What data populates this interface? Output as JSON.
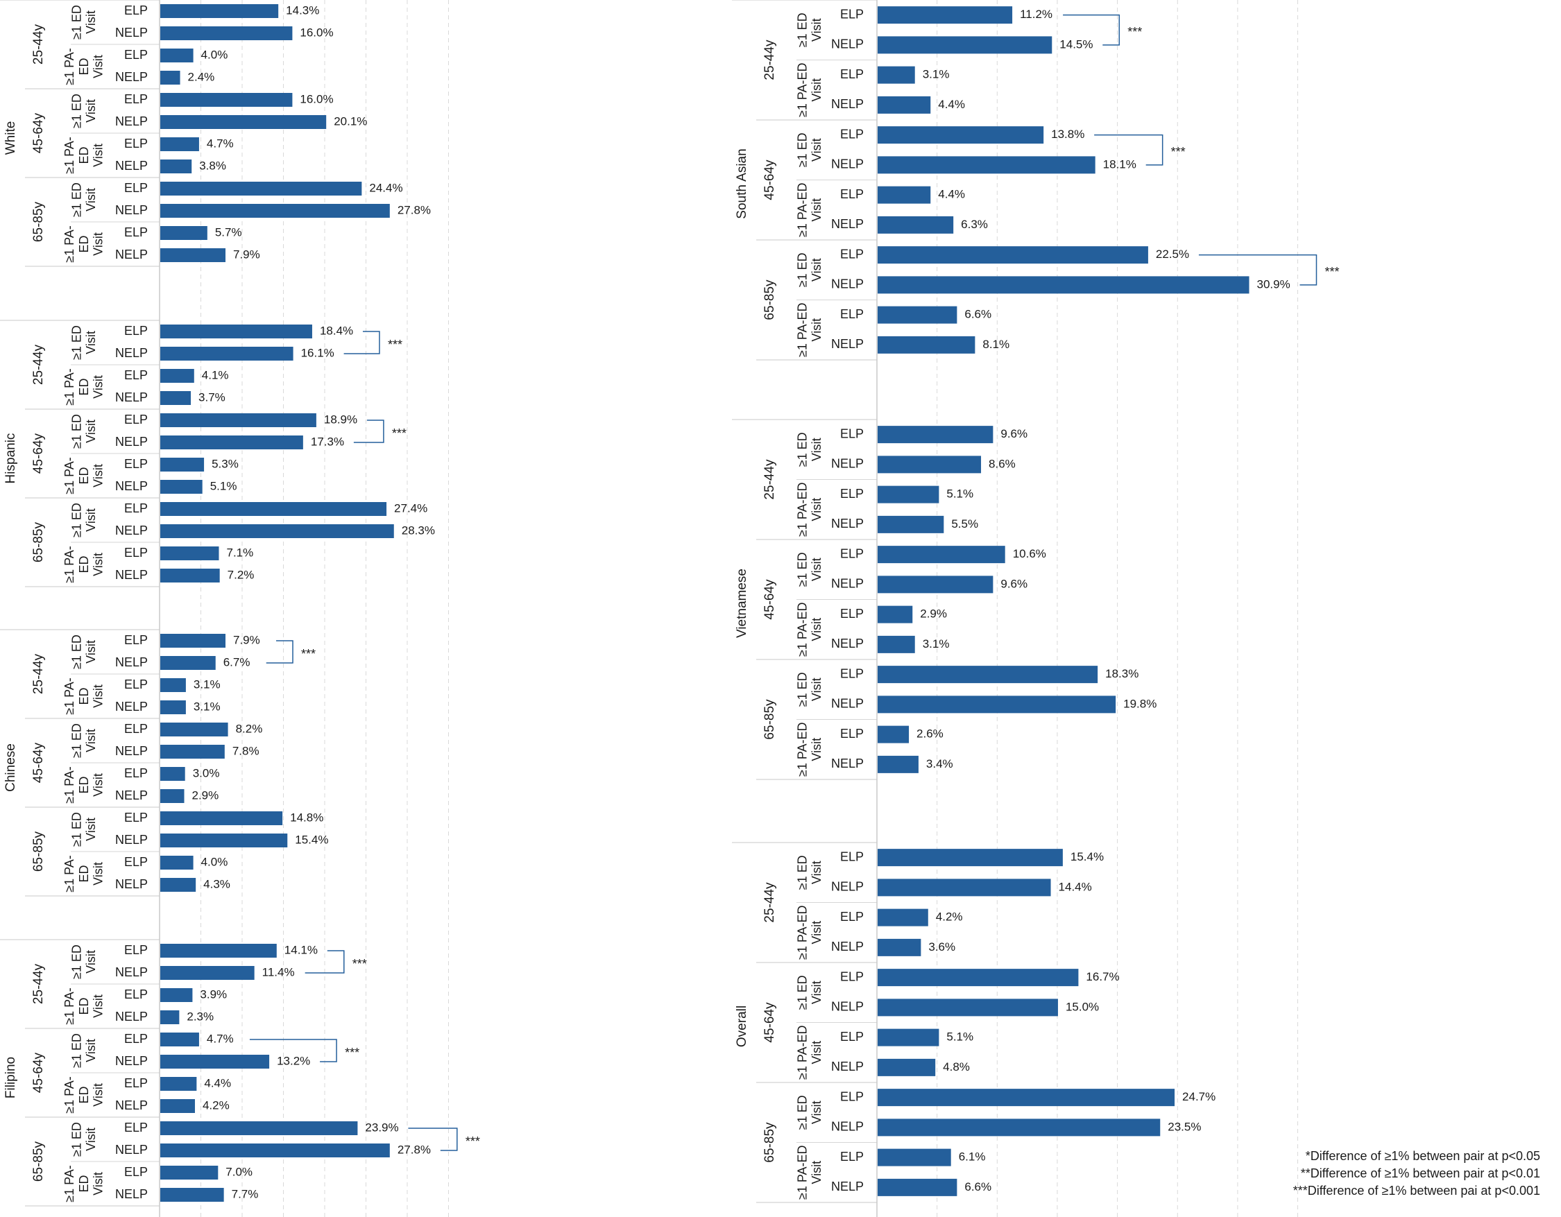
{
  "chart_data": {
    "type": "bar",
    "orientation": "horizontal",
    "xlim": [
      0,
      35
    ],
    "grid": true,
    "group_labels": [
      "ELP",
      "NELP"
    ],
    "panels": [
      {
        "group": "White",
        "age_groups": [
          {
            "age": "25-44y",
            "measures": [
              {
                "label": "≥1 ED Visit",
                "values": [
                  14.3,
                  16.0
                ],
                "labels": [
                  "14.3%",
                  "16.0%"
                ],
                "sig": ""
              },
              {
                "label": "≥1 PA-ED Visit",
                "values": [
                  4.0,
                  2.4
                ],
                "labels": [
                  "4.0%",
                  "2.4%"
                ],
                "sig": ""
              }
            ]
          },
          {
            "age": "45-64y",
            "measures": [
              {
                "label": "≥1 ED Visit",
                "values": [
                  16.0,
                  20.1
                ],
                "labels": [
                  "16.0%",
                  "20.1%"
                ],
                "sig": ""
              },
              {
                "label": "≥1 PA-ED Visit",
                "values": [
                  4.7,
                  3.8
                ],
                "labels": [
                  "4.7%",
                  "3.8%"
                ],
                "sig": ""
              }
            ]
          },
          {
            "age": "65-85y",
            "measures": [
              {
                "label": "≥1 ED Visit",
                "values": [
                  24.4,
                  27.8
                ],
                "labels": [
                  "24.4%",
                  "27.8%"
                ],
                "sig": ""
              },
              {
                "label": "≥1 PA-ED Visit",
                "values": [
                  5.7,
                  7.9
                ],
                "labels": [
                  "5.7%",
                  "7.9%"
                ],
                "sig": ""
              }
            ]
          }
        ]
      },
      {
        "group": "Hispanic",
        "age_groups": [
          {
            "age": "25-44y",
            "measures": [
              {
                "label": "≥1 ED Visit",
                "values": [
                  18.4,
                  16.1
                ],
                "labels": [
                  "18.4%",
                  "16.1%"
                ],
                "sig": "***"
              },
              {
                "label": "≥1 PA-ED Visit",
                "values": [
                  4.1,
                  3.7
                ],
                "labels": [
                  "4.1%",
                  "3.7%"
                ],
                "sig": ""
              }
            ]
          },
          {
            "age": "45-64y",
            "measures": [
              {
                "label": "≥1 ED Visit",
                "values": [
                  18.9,
                  17.3
                ],
                "labels": [
                  "18.9%",
                  "17.3%"
                ],
                "sig": "***"
              },
              {
                "label": "≥1 PA-ED Visit",
                "values": [
                  5.3,
                  5.1
                ],
                "labels": [
                  "5.3%",
                  "5.1%"
                ],
                "sig": ""
              }
            ]
          },
          {
            "age": "65-85y",
            "measures": [
              {
                "label": "≥1 ED Visit",
                "values": [
                  27.4,
                  28.3
                ],
                "labels": [
                  "27.4%",
                  "28.3%"
                ],
                "sig": ""
              },
              {
                "label": "≥1 PA-ED Visit",
                "values": [
                  7.1,
                  7.2
                ],
                "labels": [
                  "7.1%",
                  "7.2%"
                ],
                "sig": ""
              }
            ]
          }
        ]
      },
      {
        "group": "Chinese",
        "age_groups": [
          {
            "age": "25-44y",
            "measures": [
              {
                "label": "≥1 ED Visit",
                "values": [
                  7.9,
                  6.7
                ],
                "labels": [
                  "7.9%",
                  "6.7%"
                ],
                "sig": "***"
              },
              {
                "label": "≥1 PA-ED Visit",
                "values": [
                  3.1,
                  3.1
                ],
                "labels": [
                  "3.1%",
                  "3.1%"
                ],
                "sig": ""
              }
            ]
          },
          {
            "age": "45-64y",
            "measures": [
              {
                "label": "≥1 ED Visit",
                "values": [
                  8.2,
                  7.8
                ],
                "labels": [
                  "8.2%",
                  "7.8%"
                ],
                "sig": ""
              },
              {
                "label": "≥1 PA-ED Visit",
                "values": [
                  3.0,
                  2.9
                ],
                "labels": [
                  "3.0%",
                  "2.9%"
                ],
                "sig": ""
              }
            ]
          },
          {
            "age": "65-85y",
            "measures": [
              {
                "label": "≥1 ED Visit",
                "values": [
                  14.8,
                  15.4
                ],
                "labels": [
                  "14.8%",
                  "15.4%"
                ],
                "sig": ""
              },
              {
                "label": "≥1 PA-ED Visit",
                "values": [
                  4.0,
                  4.3
                ],
                "labels": [
                  "4.0%",
                  "4.3%"
                ],
                "sig": ""
              }
            ]
          }
        ]
      },
      {
        "group": "Filipino",
        "age_groups": [
          {
            "age": "25-44y",
            "measures": [
              {
                "label": "≥1 ED Visit",
                "values": [
                  14.1,
                  11.4
                ],
                "labels": [
                  "14.1%",
                  "11.4%"
                ],
                "sig": "***"
              },
              {
                "label": "≥1 PA-ED Visit",
                "values": [
                  3.9,
                  2.3
                ],
                "labels": [
                  "3.9%",
                  "2.3%"
                ],
                "sig": ""
              }
            ]
          },
          {
            "age": "45-64y",
            "measures": [
              {
                "label": "≥1 ED Visit",
                "values": [
                  4.7,
                  13.2
                ],
                "labels": [
                  "4.7%",
                  "13.2%"
                ],
                "sig": "***"
              },
              {
                "label": "≥1 PA-ED Visit",
                "values": [
                  4.4,
                  4.2
                ],
                "labels": [
                  "4.4%",
                  "4.2%"
                ],
                "sig": ""
              }
            ]
          },
          {
            "age": "65-85y",
            "measures": [
              {
                "label": "≥1 ED Visit",
                "values": [
                  23.9,
                  27.8
                ],
                "labels": [
                  "23.9%",
                  "27.8%"
                ],
                "sig": "***"
              },
              {
                "label": "≥1 PA-ED Visit",
                "values": [
                  7.0,
                  7.7
                ],
                "labels": [
                  "7.0%",
                  "7.7%"
                ],
                "sig": ""
              }
            ]
          }
        ]
      },
      {
        "group": "South Asian",
        "age_groups": [
          {
            "age": "25-44y",
            "measures": [
              {
                "label": "≥1 ED Visit",
                "values": [
                  11.2,
                  14.5
                ],
                "labels": [
                  "11.2%",
                  "14.5%"
                ],
                "sig": "***"
              },
              {
                "label": "≥1 PA-ED Visit",
                "values": [
                  3.1,
                  4.4
                ],
                "labels": [
                  "3.1%",
                  "4.4%"
                ],
                "sig": ""
              }
            ]
          },
          {
            "age": "45-64y",
            "measures": [
              {
                "label": "≥1 ED Visit",
                "values": [
                  13.8,
                  18.1
                ],
                "labels": [
                  "13.8%",
                  "18.1%"
                ],
                "sig": "***"
              },
              {
                "label": "≥1 PA-ED Visit",
                "values": [
                  4.4,
                  6.3
                ],
                "labels": [
                  "4.4%",
                  "6.3%"
                ],
                "sig": ""
              }
            ]
          },
          {
            "age": "65-85y",
            "measures": [
              {
                "label": "≥1 ED Visit",
                "values": [
                  22.5,
                  30.9
                ],
                "labels": [
                  "22.5%",
                  "30.9%"
                ],
                "sig": "***"
              },
              {
                "label": "≥1 PA-ED Visit",
                "values": [
                  6.6,
                  8.1
                ],
                "labels": [
                  "6.6%",
                  "8.1%"
                ],
                "sig": ""
              }
            ]
          }
        ]
      },
      {
        "group": "Vietnamese",
        "age_groups": [
          {
            "age": "25-44y",
            "measures": [
              {
                "label": "≥1 ED Visit",
                "values": [
                  9.6,
                  8.6
                ],
                "labels": [
                  "9.6%",
                  "8.6%"
                ],
                "sig": ""
              },
              {
                "label": "≥1 PA-ED Visit",
                "values": [
                  5.1,
                  5.5
                ],
                "labels": [
                  "5.1%",
                  "5.5%"
                ],
                "sig": ""
              }
            ]
          },
          {
            "age": "45-64y",
            "measures": [
              {
                "label": "≥1 ED Visit",
                "values": [
                  10.6,
                  9.6
                ],
                "labels": [
                  "10.6%",
                  "9.6%"
                ],
                "sig": ""
              },
              {
                "label": "≥1 PA-ED Visit",
                "values": [
                  2.9,
                  3.1
                ],
                "labels": [
                  "2.9%",
                  "3.1%"
                ],
                "sig": ""
              }
            ]
          },
          {
            "age": "65-85y",
            "measures": [
              {
                "label": "≥1 ED Visit",
                "values": [
                  18.3,
                  19.8
                ],
                "labels": [
                  "18.3%",
                  "19.8%"
                ],
                "sig": ""
              },
              {
                "label": "≥1 PA-ED Visit",
                "values": [
                  2.6,
                  3.4
                ],
                "labels": [
                  "2.6%",
                  "3.4%"
                ],
                "sig": ""
              }
            ]
          }
        ]
      },
      {
        "group": "Overall",
        "age_groups": [
          {
            "age": "25-44y",
            "measures": [
              {
                "label": "≥1 ED Visit",
                "values": [
                  15.4,
                  14.4
                ],
                "labels": [
                  "15.4%",
                  "14.4%"
                ],
                "sig": ""
              },
              {
                "label": "≥1 PA-ED Visit",
                "values": [
                  4.2,
                  3.6
                ],
                "labels": [
                  "4.2%",
                  "3.6%"
                ],
                "sig": ""
              }
            ]
          },
          {
            "age": "45-64y",
            "measures": [
              {
                "label": "≥1 ED Visit",
                "values": [
                  16.7,
                  15.0
                ],
                "labels": [
                  "16.7%",
                  "15.0%"
                ],
                "sig": ""
              },
              {
                "label": "≥1 PA-ED Visit",
                "values": [
                  5.1,
                  4.8
                ],
                "labels": [
                  "5.1%",
                  "4.8%"
                ],
                "sig": ""
              }
            ]
          },
          {
            "age": "65-85y",
            "measures": [
              {
                "label": "≥1 ED Visit",
                "values": [
                  24.7,
                  23.5
                ],
                "labels": [
                  "24.7%",
                  "23.5%"
                ],
                "sig": ""
              },
              {
                "label": "≥1 PA-ED Visit",
                "values": [
                  6.1,
                  6.6
                ],
                "labels": [
                  "6.1%",
                  "6.6%"
                ],
                "sig": ""
              }
            ]
          }
        ]
      }
    ],
    "footnotes": [
      "*Difference of  ≥1% between pair at p<0.05",
      "**Difference of  ≥1% between pair at p<0.01",
      "***Difference of  ≥1% between pai at p<0.001"
    ]
  },
  "colors": {
    "bar": "#245F9B",
    "grid": "#d9d9d9",
    "axis": "#c8c8c8",
    "text": "#1a1a1a"
  }
}
